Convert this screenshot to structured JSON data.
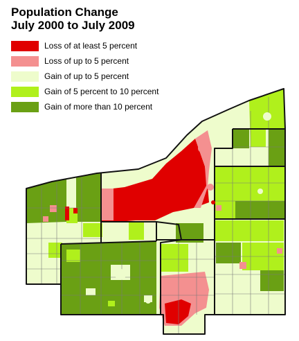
{
  "title": {
    "line1": "Population Change",
    "line2": "July 2000 to July 2009"
  },
  "legend": {
    "items": [
      {
        "label": "Loss of at least 5 percent",
        "color": "#e00000"
      },
      {
        "label": "Loss of up to 5 percent",
        "color": "#f49090"
      },
      {
        "label": "Gain of up to 5 percent",
        "color": "#eefccc"
      },
      {
        "label": "Gain of 5 percent to 10 percent",
        "color": "#b0f01c"
      },
      {
        "label": "Gain of more than 10 percent",
        "color": "#6aa014"
      }
    ]
  },
  "map": {
    "region_colors": {
      "loss_5_plus": "#e00000",
      "loss_up_to_5": "#f49090",
      "gain_up_to_5": "#eefccc",
      "gain_5_to_10": "#b0f01c",
      "gain_10_plus": "#6aa014"
    },
    "boundary_color": "#111111",
    "township_line_color": "#7a7a7a"
  }
}
